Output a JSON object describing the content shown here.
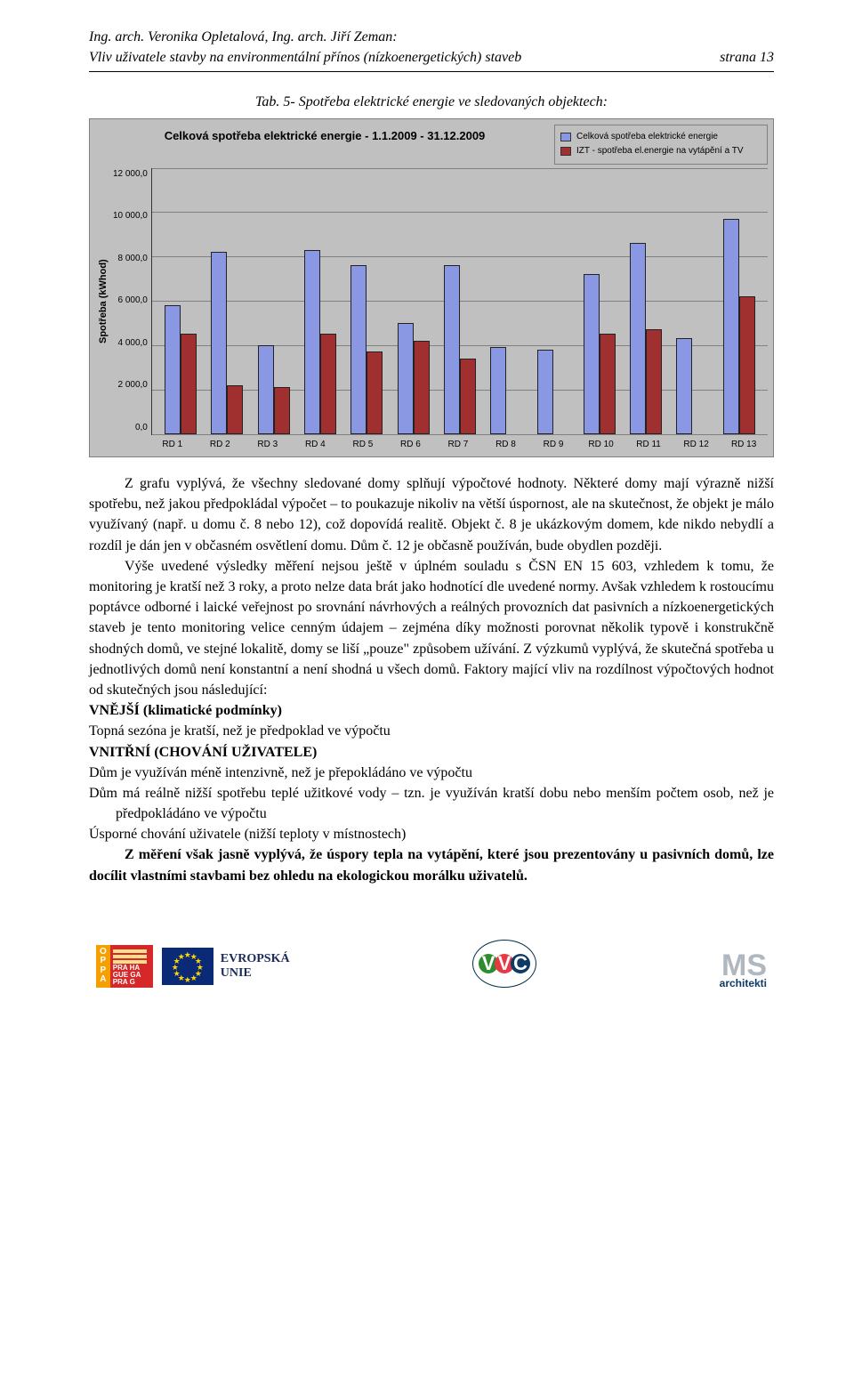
{
  "header": {
    "authors": "Ing. arch. Veronika Opletalová, Ing. arch. Jiří Zeman:",
    "title": "Vliv uživatele stavby na environmentální přínos (nízkoenergetických) staveb",
    "page": "strana 13"
  },
  "caption": "Tab. 5- Spotřeba elektrické energie ve sledovaných objektech:",
  "chart": {
    "type": "bar",
    "title": "Celková spotřeba elektrické energie - 1.1.2009 - 31.12.2009",
    "title_fontsize": 13,
    "legend": [
      {
        "label": "Celková spotřeba elektrické energie",
        "color": "#8a98e3"
      },
      {
        "label": "IZT - spotřeba el.energie na vytápění a TV",
        "color": "#a02f2f"
      }
    ],
    "y_label": "Spotřeba (kWhod)",
    "y_max": 12000,
    "y_ticks": [
      "12 000,0",
      "10 000,0",
      "8 000,0",
      "6 000,0",
      "4 000,0",
      "2 000,0",
      "0,0"
    ],
    "background_color": "#c0c0c0",
    "grid_color": "#808080",
    "bar_colors": [
      "#8a98e3",
      "#a02f2f"
    ],
    "categories": [
      "RD 1",
      "RD 2",
      "RD 3",
      "RD 4",
      "RD 5",
      "RD 6",
      "RD 7",
      "RD 8",
      "RD 9",
      "RD 10",
      "RD 11",
      "RD 12",
      "RD 13"
    ],
    "series": {
      "total": [
        5800,
        8200,
        4000,
        8300,
        7600,
        5000,
        7600,
        3900,
        3800,
        7200,
        8600,
        4300,
        9700
      ],
      "heating": [
        4500,
        2200,
        2100,
        4500,
        3700,
        4200,
        3400,
        0,
        0,
        4500,
        4700,
        0,
        6200
      ]
    },
    "label_fontsize": 10
  },
  "text": {
    "p1": "Z grafu vyplývá, že všechny sledované domy splňují výpočtové hodnoty. Některé domy mají výrazně nižší spotřebu, než jakou předpokládal výpočet – to poukazuje nikoliv na větší úspornost, ale na skutečnost, že objekt je málo využívaný (např. u domu č. 8 nebo 12), což dopovídá realitě. Objekt č. 8 je ukázkovým domem, kde nikdo nebydlí a rozdíl je dán jen v občasném osvětlení domu. Dům č. 12 je občasně používán, bude obydlen později.",
    "p2": "Výše uvedené výsledky měření nejsou ještě v úplném souladu s ČSN EN 15 603, vzhledem k tomu, že monitoring je kratší než 3 roky, a proto nelze data brát jako hodnotící dle uvedené normy. Avšak vzhledem k rostoucímu poptávce odborné i laické veřejnost po srovnání návrhových a reálných provozních dat pasivních a nízkoenergetických staveb je tento monitoring velice cenným údajem – zejména díky možnosti porovnat několik typově i konstrukčně shodných domů, ve stejné lokalitě, domy se liší „pouze\" způsobem užívání. Z výzkumů vyplývá, že skutečná spotřeba u jednotlivých domů není konstantní a není shodná u všech domů. Faktory mající vliv na rozdílnost výpočtových hodnot od skutečných jsou následující:",
    "sec1": "VNĚJŠÍ (klimatické podmínky)",
    "sec1_line": "Topná sezóna je kratší, než je předpoklad ve výpočtu",
    "sec2": "VNITŘNÍ (CHOVÁNÍ UŽIVATELE)",
    "sec2_line1": "Dům je využíván méně intenzivně, než je přepokládáno ve výpočtu",
    "sec2_line2": "Dům má reálně nižší spotřebu teplé užitkové vody – tzn. je využíván kratší dobu nebo menším počtem osob, než je předpokládáno ve výpočtu",
    "sec2_line3": "Úsporné chování uživatele (nižší teploty v místnostech)",
    "conclusion": "Z měření však jasně vyplývá, že úspory tepla na vytápění, které jsou prezentovány u pasivních domů, lze docílit vlastními stavbami bez ohledu na ekologickou morálku uživatelů."
  },
  "footer": {
    "oppa": {
      "l1": "O",
      "l2": "P",
      "l3": "P",
      "l4": "A"
    },
    "praha_lines": [
      "PRA HA",
      "GUE GA",
      "PRA G"
    ],
    "eu": {
      "l1": "EVROPSKÁ",
      "l2": "UNIE"
    },
    "vvc": {
      "c1": "V",
      "c2": "V",
      "c3": "C",
      "colors": [
        "#2e8b2e",
        "#e63946",
        "#0d3b66"
      ]
    },
    "ms": {
      "top": "MS",
      "sub": "architekti"
    }
  }
}
